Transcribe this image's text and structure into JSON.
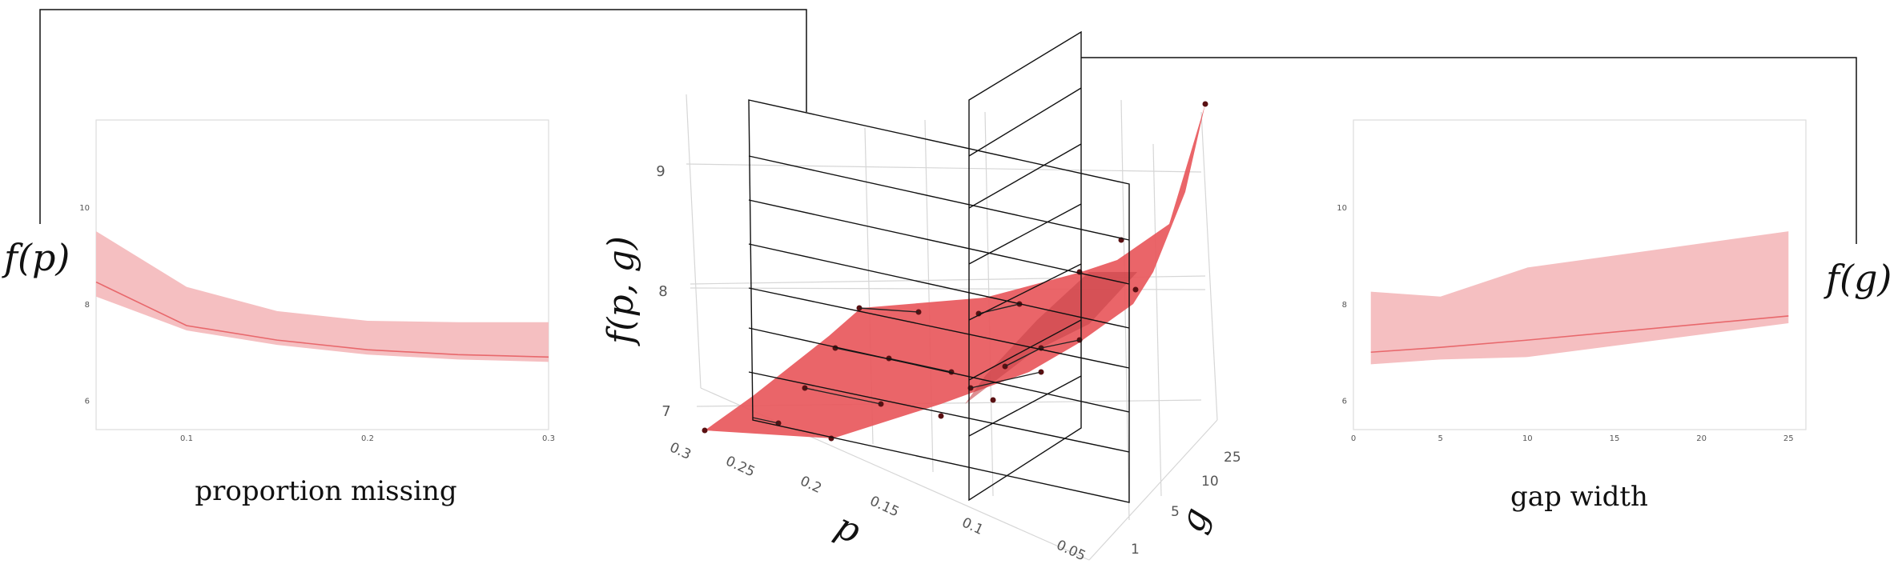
{
  "chart_data": [
    {
      "type": "area",
      "xlabel": "proportion missing",
      "ylabel": "f(p)",
      "x": [
        0.05,
        0.1,
        0.15,
        0.2,
        0.25,
        0.3
      ],
      "series": [
        {
          "values": [
            8.45,
            7.55,
            7.25,
            7.05,
            6.95,
            6.9
          ],
          "lower": [
            8.15,
            7.45,
            7.15,
            6.95,
            6.85,
            6.8
          ],
          "upper": [
            9.5,
            8.35,
            7.85,
            7.65,
            7.62,
            7.62
          ]
        }
      ],
      "xticks": [
        "0.1",
        "0.2",
        "0.3"
      ],
      "yticks": [
        "6",
        "8",
        "10"
      ],
      "xlim": [
        0.05,
        0.3
      ],
      "ylim": [
        5.4,
        11.8
      ],
      "color": "#e8686c",
      "band_color": "#f5bfc1"
    },
    {
      "type": "area",
      "xlabel": "gap width",
      "ylabel": "f(g)",
      "x": [
        1,
        5,
        10,
        25
      ],
      "series": [
        {
          "values": [
            7.0,
            7.1,
            7.25,
            7.75
          ],
          "lower": [
            6.75,
            6.85,
            6.9,
            7.6
          ],
          "upper": [
            8.25,
            8.15,
            8.75,
            9.5
          ]
        }
      ],
      "xticks": [
        "0",
        "5",
        "10",
        "15",
        "20",
        "25"
      ],
      "yticks": [
        "6",
        "8",
        "10"
      ],
      "xlim": [
        0,
        26
      ],
      "ylim": [
        5.4,
        11.8
      ],
      "color": "#e8686c",
      "band_color": "#f5bfc1"
    },
    {
      "type": "surface",
      "zlabel": "f(p, g)",
      "xlabel": "p",
      "ylabel": "g",
      "p_ticks": [
        "0.3",
        "0.25",
        "0.2",
        "0.15",
        "0.1",
        "0.05"
      ],
      "g_ticks": [
        "1",
        "5",
        "10",
        "25"
      ],
      "z_ticks": [
        "7",
        "8",
        "9"
      ],
      "color": "#e8585c"
    }
  ]
}
